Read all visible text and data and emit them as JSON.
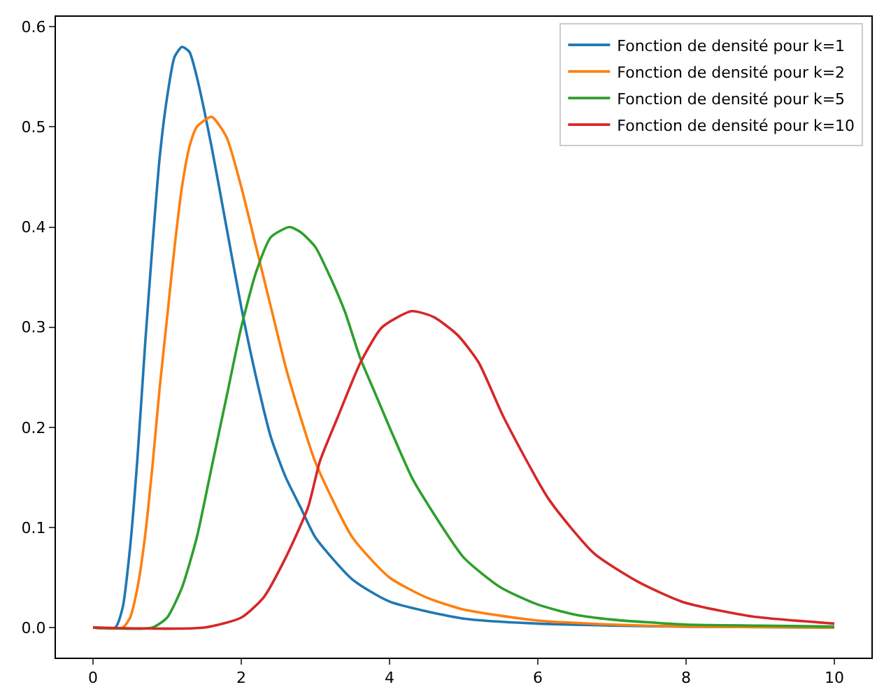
{
  "chart_data": {
    "type": "line",
    "legend": "top right",
    "marker": "none",
    "line_style": "solid",
    "xlim": [
      -0.5,
      10.5
    ],
    "ylim": [
      -0.03,
      0.61
    ],
    "xticks": [
      0,
      2,
      4,
      6,
      8,
      10
    ],
    "yticks": [
      {
        "value": 0,
        "label": "0.0"
      },
      {
        "value": 0.1,
        "label": "0.1"
      },
      {
        "value": 0.2,
        "label": "0.2"
      },
      {
        "value": 0.3,
        "label": "0.3"
      },
      {
        "value": 0.4,
        "label": "0.4"
      },
      {
        "value": 0.5,
        "label": "0.5"
      },
      {
        "value": 0.6,
        "label": "0.6"
      }
    ],
    "series": [
      {
        "name": "Fonction de densité pour k=1",
        "color": "#1f77b4",
        "x": [
          0,
          0.3,
          0.4,
          0.5,
          0.6,
          0.7,
          0.8,
          0.9,
          1.0,
          1.1,
          1.2,
          1.3,
          1.4,
          1.6,
          1.8,
          2.0,
          2.2,
          2.4,
          2.6,
          2.8,
          3.0,
          3.5,
          4,
          5,
          6,
          8,
          10
        ],
        "values": [
          0,
          0,
          0.02,
          0.08,
          0.17,
          0.28,
          0.38,
          0.47,
          0.53,
          0.57,
          0.58,
          0.575,
          0.55,
          0.48,
          0.4,
          0.32,
          0.25,
          0.19,
          0.15,
          0.12,
          0.09,
          0.048,
          0.026,
          0.009,
          0.004,
          0.001,
          0
        ]
      },
      {
        "name": "Fonction de densité pour k=2",
        "color": "#ff7f0e",
        "x": [
          0,
          0.4,
          0.5,
          0.6,
          0.7,
          0.8,
          0.9,
          1.0,
          1.1,
          1.2,
          1.3,
          1.4,
          1.6,
          1.8,
          2.0,
          2.2,
          2.4,
          2.6,
          2.8,
          3.0,
          3.5,
          4,
          4.5,
          5,
          6,
          7,
          8,
          10
        ],
        "values": [
          0,
          0,
          0.01,
          0.04,
          0.09,
          0.16,
          0.24,
          0.31,
          0.38,
          0.44,
          0.48,
          0.5,
          0.51,
          0.49,
          0.44,
          0.38,
          0.32,
          0.26,
          0.21,
          0.165,
          0.09,
          0.05,
          0.03,
          0.018,
          0.007,
          0.003,
          0.001,
          0
        ]
      },
      {
        "name": "Fonction de densité pour k=5",
        "color": "#2ca02c",
        "x": [
          0,
          0.8,
          1.0,
          1.2,
          1.4,
          1.6,
          1.8,
          2.0,
          2.2,
          2.4,
          2.65,
          2.8,
          3.0,
          3.2,
          3.4,
          3.6,
          3.8,
          4.0,
          4.3,
          4.5,
          5.0,
          5.5,
          6.0,
          6.5,
          7,
          8,
          9,
          10
        ],
        "values": [
          0,
          0,
          0.01,
          0.04,
          0.09,
          0.16,
          0.23,
          0.3,
          0.355,
          0.39,
          0.4,
          0.395,
          0.38,
          0.35,
          0.315,
          0.27,
          0.235,
          0.2,
          0.15,
          0.125,
          0.07,
          0.04,
          0.023,
          0.013,
          0.008,
          0.003,
          0.002,
          0.001
        ]
      },
      {
        "name": "Fonction de densité pour k=10",
        "color": "#d62728",
        "x": [
          0,
          1.5,
          2.0,
          2.3,
          2.6,
          2.9,
          3.06,
          3.3,
          3.61,
          3.9,
          4.3,
          4.6,
          4.92,
          5.2,
          5.54,
          6.15,
          6.76,
          7.37,
          7.98,
          8.9,
          10
        ],
        "values": [
          0,
          0,
          0.01,
          0.03,
          0.07,
          0.12,
          0.166,
          0.21,
          0.265,
          0.3,
          0.316,
          0.31,
          0.292,
          0.265,
          0.21,
          0.128,
          0.074,
          0.045,
          0.025,
          0.011,
          0.004
        ]
      }
    ]
  }
}
